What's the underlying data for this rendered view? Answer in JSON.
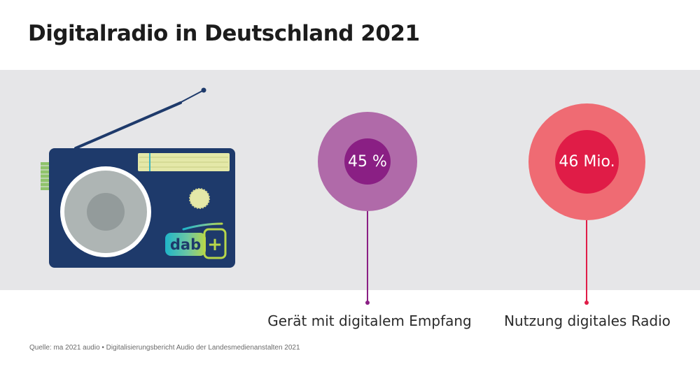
{
  "title": "Digitalradio in Deutschland 2021",
  "stats": [
    {
      "value": "45 %",
      "label": "Gerät mit digitalem Empfang",
      "outer_color": "#b06aa9",
      "inner_color": "#8a1f84",
      "line_color": "#8a1f84"
    },
    {
      "value": "46 Mio.",
      "label": "Nutzung digitales Radio",
      "outer_color": "#ef6b73",
      "inner_color": "#e01c47",
      "line_color": "#e01c47"
    }
  ],
  "radio": {
    "logo_text": "dab",
    "logo_plus": "+",
    "body_color": "#1e3a6b",
    "speaker_color": "#aeb5b4",
    "tuner_color": "#e4e8a8"
  },
  "source": "Quelle: ma 2021 audio • Digitalisierungsbericht Audio der Landesmedienanstalten 2021"
}
